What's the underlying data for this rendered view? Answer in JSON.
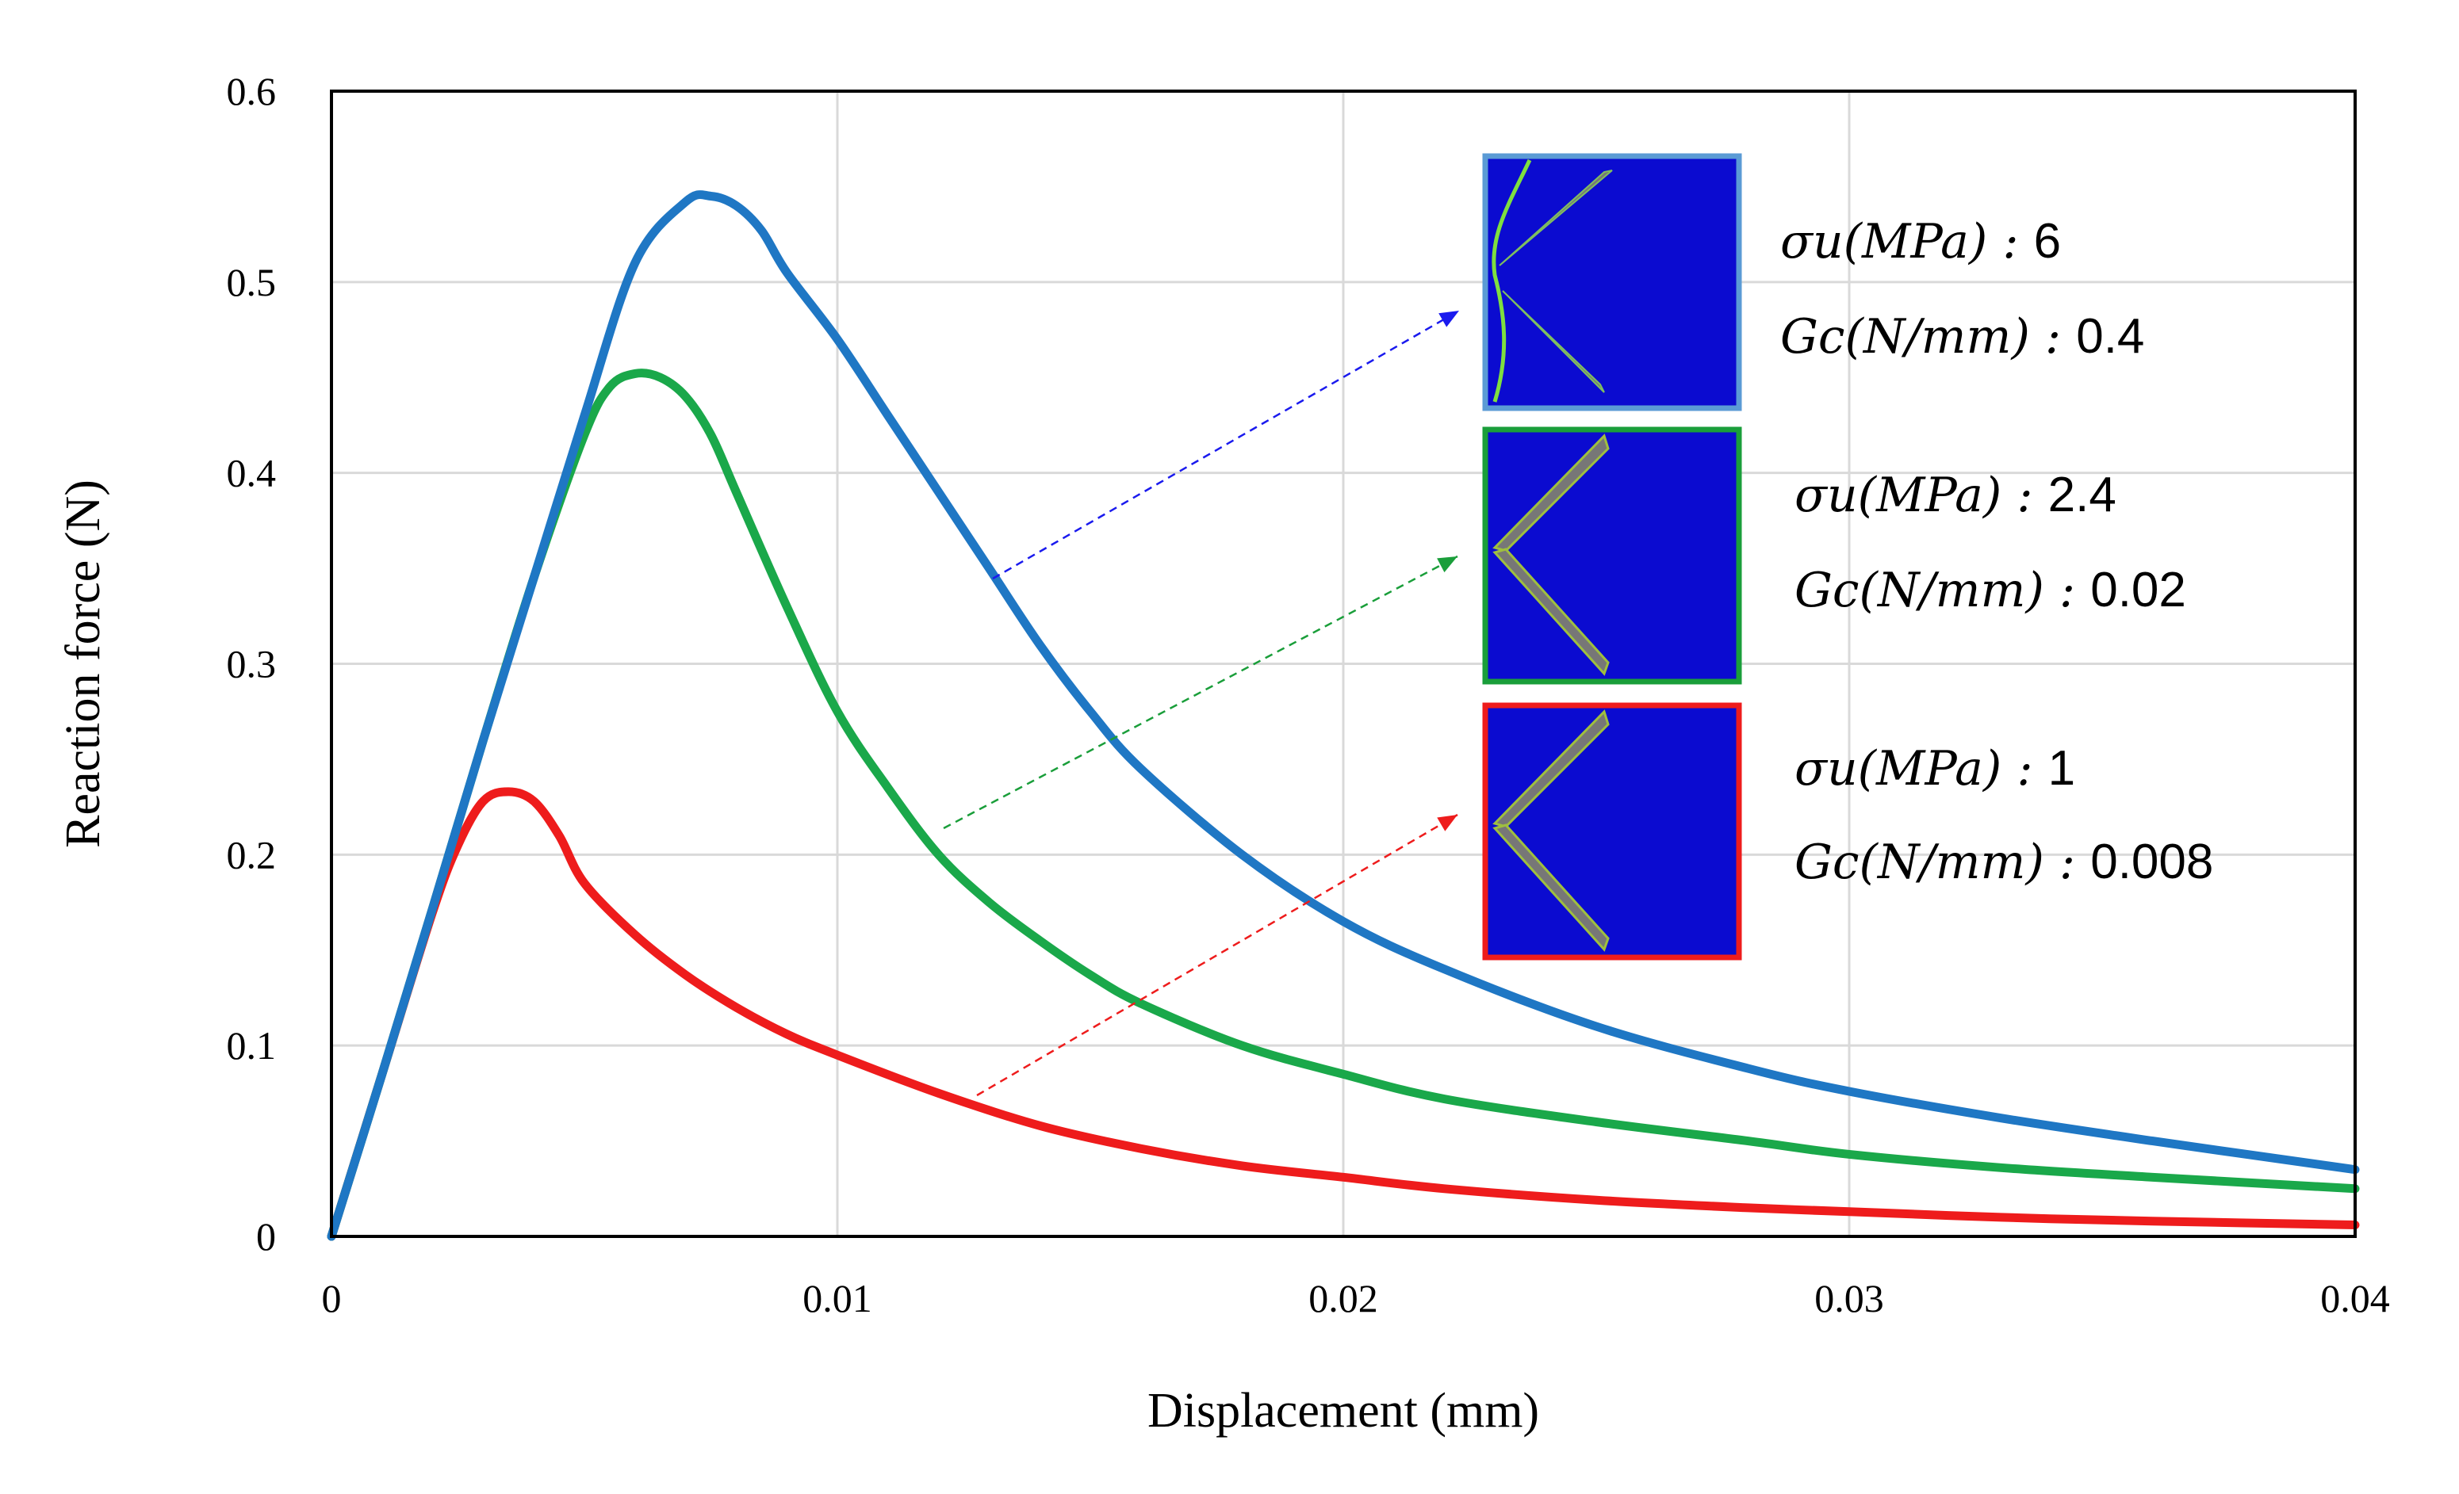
{
  "chart_data": {
    "type": "line",
    "title": "",
    "xlabel": "Displacement (mm)",
    "ylabel": "Reaction force (N)",
    "xlim": [
      0,
      0.04
    ],
    "ylim": [
      0,
      0.6
    ],
    "x_ticks": [
      "0",
      "0.01",
      "0.02",
      "0.03",
      "0.04"
    ],
    "y_ticks": [
      "0",
      "0.1",
      "0.2",
      "0.3",
      "0.4",
      "0.5",
      "0.6"
    ],
    "grid": true,
    "series": [
      {
        "color": "#1f77c4",
        "x": [
          0,
          0.001,
          0.002,
          0.003,
          0.004,
          0.005,
          0.006,
          0.007,
          0.0075,
          0.008,
          0.0085,
          0.009,
          0.01,
          0.011,
          0.012,
          0.013,
          0.014,
          0.015,
          0.016,
          0.018,
          0.02,
          0.022,
          0.025,
          0.028,
          0.03,
          0.033,
          0.036,
          0.04
        ],
        "y": [
          0,
          0.085,
          0.172,
          0.26,
          0.345,
          0.43,
          0.51,
          0.542,
          0.545,
          0.54,
          0.527,
          0.505,
          0.47,
          0.43,
          0.39,
          0.35,
          0.31,
          0.275,
          0.245,
          0.2,
          0.165,
          0.14,
          0.11,
          0.088,
          0.076,
          0.062,
          0.05,
          0.035
        ]
      },
      {
        "color": "#1aa84a",
        "x": [
          0,
          0.001,
          0.002,
          0.003,
          0.004,
          0.005,
          0.0055,
          0.006,
          0.0065,
          0.007,
          0.0075,
          0.008,
          0.009,
          0.01,
          0.011,
          0.012,
          0.013,
          0.014,
          0.015,
          0.016,
          0.018,
          0.02,
          0.022,
          0.025,
          0.028,
          0.03,
          0.033,
          0.036,
          0.04
        ],
        "y": [
          0,
          0.085,
          0.172,
          0.26,
          0.345,
          0.42,
          0.445,
          0.452,
          0.45,
          0.44,
          0.42,
          0.39,
          0.33,
          0.275,
          0.235,
          0.2,
          0.175,
          0.155,
          0.137,
          0.122,
          0.1,
          0.085,
          0.072,
          0.06,
          0.05,
          0.043,
          0.036,
          0.031,
          0.025
        ]
      },
      {
        "color": "#ee1c1c",
        "x": [
          0,
          0.001,
          0.002,
          0.0025,
          0.003,
          0.0035,
          0.004,
          0.0045,
          0.005,
          0.006,
          0.007,
          0.008,
          0.009,
          0.01,
          0.012,
          0.014,
          0.016,
          0.018,
          0.02,
          0.022,
          0.025,
          0.028,
          0.03,
          0.033,
          0.036,
          0.04
        ],
        "y": [
          0,
          0.085,
          0.17,
          0.205,
          0.228,
          0.233,
          0.228,
          0.21,
          0.185,
          0.158,
          0.137,
          0.12,
          0.106,
          0.095,
          0.075,
          0.058,
          0.046,
          0.037,
          0.031,
          0.025,
          0.019,
          0.015,
          0.013,
          0.01,
          0.008,
          0.006
        ]
      }
    ]
  },
  "annotations": [
    {
      "color": "#5b9bd5",
      "line1": "σu(MPa) : ",
      "value1": "6",
      "line2": "Gc(N/mm) : ",
      "value2": "0.4"
    },
    {
      "color": "#1a9e3a",
      "line1": "σu(MPa) : ",
      "value1": "2.4",
      "line2": "Gc(N/mm) : ",
      "value2": "0.02"
    },
    {
      "color": "#ee1c1c",
      "line1": "σu(MPa) : ",
      "value1": "1",
      "line2": "Gc(N/mm) : ",
      "value2": "0.008"
    }
  ],
  "arrow_colors": [
    "#1a1aee",
    "#1a9e3a",
    "#ee1c1c"
  ],
  "inset_fill": "#0b0bd0"
}
